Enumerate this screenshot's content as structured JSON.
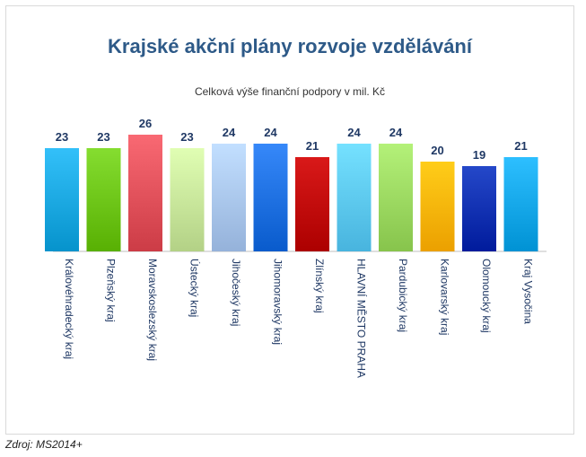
{
  "chart_data": {
    "type": "bar",
    "title": "Krajské akční plány rozvoje vzdělávání",
    "subtitle": "Celková výše finanční podpory v mil. Kč",
    "categories": [
      "Královéhradecký kraj",
      "Plzeňský kraj",
      "Moravskoslezský kraj",
      "Ústecký kraj",
      "Jihočeský kraj",
      "Jihomoravský kraj",
      "Zlínský kraj",
      "HLAVNÍ MĚSTO PRAHA",
      "Pardubický kraj",
      "Karlovarský kraj",
      "Olomoucký kraj",
      "Kraj Vysočina"
    ],
    "values": [
      23,
      23,
      26,
      23,
      24,
      24,
      21,
      24,
      24,
      20,
      19,
      21
    ],
    "colors": [
      "#1aa7e0",
      "#6cc417",
      "#e0505a",
      "#c7e59a",
      "#a9c6ee",
      "#1d6fe0",
      "#c00000",
      "#5cc8f2",
      "#9bd860",
      "#ffb400",
      "#0c2fb0",
      "#14a6e8"
    ],
    "ylim": [
      0,
      26
    ],
    "grid": false,
    "legend": "none"
  },
  "source": "Zdroj: MS2014+"
}
